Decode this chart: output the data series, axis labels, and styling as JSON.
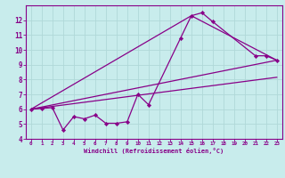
{
  "xlabel": "Windchill (Refroidissement éolien,°C)",
  "background_color": "#c8ecec",
  "grid_color": "#b0d8d8",
  "line_color": "#880088",
  "xlim": [
    -0.5,
    23.5
  ],
  "ylim": [
    4,
    13
  ],
  "yticks": [
    4,
    5,
    6,
    7,
    8,
    9,
    10,
    11,
    12
  ],
  "xticks": [
    0,
    1,
    2,
    3,
    4,
    5,
    6,
    7,
    8,
    9,
    10,
    11,
    12,
    13,
    14,
    15,
    16,
    17,
    18,
    19,
    20,
    21,
    22,
    23
  ],
  "line1_x": [
    0,
    1,
    2,
    3,
    4,
    5,
    6,
    7,
    8,
    9,
    10,
    11,
    14,
    15,
    16,
    17,
    21,
    22,
    23
  ],
  "line1_y": [
    6.0,
    6.05,
    6.1,
    4.6,
    5.5,
    5.35,
    5.6,
    5.05,
    5.05,
    5.15,
    7.0,
    6.3,
    10.8,
    12.3,
    12.5,
    11.9,
    9.6,
    9.6,
    9.3
  ],
  "line2_x": [
    0,
    23
  ],
  "line2_y": [
    6.0,
    8.15
  ],
  "line3_x": [
    0,
    15,
    23
  ],
  "line3_y": [
    6.0,
    12.3,
    9.3
  ],
  "line4_x": [
    0,
    23
  ],
  "line4_y": [
    6.0,
    9.3
  ],
  "marker": "D",
  "markersize": 2.2,
  "linewidth": 0.9
}
